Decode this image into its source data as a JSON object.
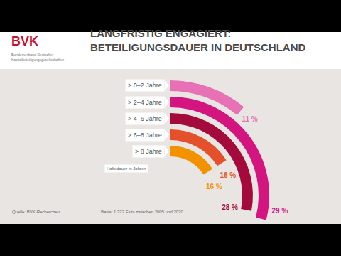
{
  "chart_data": {
    "type": "radial_bar",
    "title": "LANGFRISTIG ENGAGIERT: BETEILIGUNGSDAUER IN DEUTSCHLAND",
    "categories": [
      "> 0–2 Jahre",
      "> 2–4 Jahre",
      "> 4–6 Jahre",
      "> 6–8 Jahre",
      "> 8 Jahre"
    ],
    "values": [
      11,
      29,
      28,
      16,
      16
    ],
    "value_labels": [
      "11 %",
      "29 %",
      "28 %",
      "16 %",
      "16 %"
    ],
    "colors": [
      "#e870b5",
      "#d4147f",
      "#a50a3c",
      "#e4502a",
      "#f39200"
    ],
    "data_labels": true,
    "tick_labels": false,
    "note": "Haltedauer in Jahren",
    "logo": "BVK",
    "logo_subtitle": "Bundesverband Deutscher Kapitalbeteiligungsgesellschaften",
    "source": "Quelle: BVK-Recherchen",
    "base": "Basis: 1.322 Exits zwischen 2005 und 2020"
  }
}
